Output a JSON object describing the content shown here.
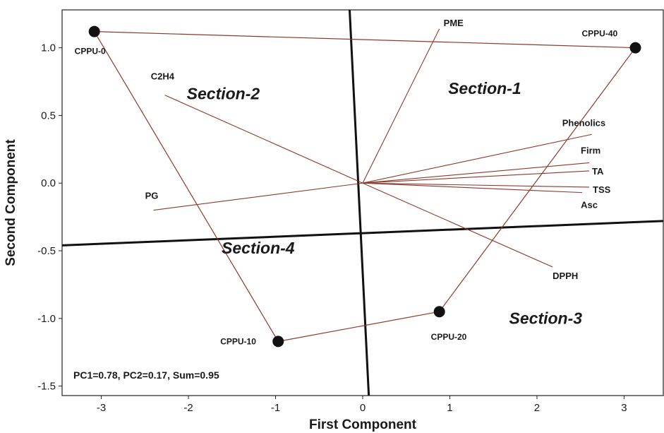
{
  "chart_data": {
    "type": "scatter",
    "subtype": "biplot",
    "xlabel": "First Component",
    "ylabel": "Second Component",
    "xlim": [
      -3.45,
      3.45
    ],
    "ylim": [
      -1.57,
      1.28
    ],
    "xticks": [
      -3,
      -2,
      -1,
      0,
      1,
      2,
      3
    ],
    "xtick_labels": [
      "-3",
      "-2",
      "-1",
      "0",
      "1",
      "2",
      "3"
    ],
    "yticks": [
      -1.5,
      -1.0,
      -0.5,
      0.0,
      0.5,
      1.0
    ],
    "ytick_labels": [
      "-1.5",
      "-1.0",
      "-0.5",
      "0.0",
      "0.5",
      "1.0"
    ],
    "grid": false,
    "observations": [
      {
        "label": "CPPU-0",
        "x": -3.08,
        "y": 1.12
      },
      {
        "label": "CPPU-40",
        "x": 3.13,
        "y": 1.0
      },
      {
        "label": "CPPU-20",
        "x": 0.88,
        "y": -0.95
      },
      {
        "label": "CPPU-10",
        "x": -0.97,
        "y": -1.17
      }
    ],
    "observation_links": [
      [
        "CPPU-0",
        "CPPU-40"
      ],
      [
        "CPPU-40",
        "CPPU-20"
      ],
      [
        "CPPU-20",
        "CPPU-10"
      ],
      [
        "CPPU-10",
        "CPPU-0"
      ]
    ],
    "loadings": [
      {
        "label": "PME",
        "x": 0.88,
        "y": 1.14
      },
      {
        "label": "C2H4",
        "x": -2.27,
        "y": 0.65
      },
      {
        "label": "Phenolics",
        "x": 2.63,
        "y": 0.36
      },
      {
        "label": "Firm",
        "x": 2.6,
        "y": 0.15
      },
      {
        "label": "TA",
        "x": 2.6,
        "y": 0.09
      },
      {
        "label": "TSS",
        "x": 2.6,
        "y": -0.03
      },
      {
        "label": "Asc",
        "x": 2.52,
        "y": -0.07
      },
      {
        "label": "PG",
        "x": -2.4,
        "y": -0.2
      },
      {
        "label": "DPPH",
        "x": 2.18,
        "y": -0.62
      }
    ],
    "section_dividers": [
      {
        "from": [
          -0.15,
          1.28
        ],
        "to": [
          0.07,
          -1.57
        ]
      },
      {
        "from": [
          -3.45,
          -0.46
        ],
        "to": [
          3.45,
          -0.28
        ]
      }
    ],
    "sections": [
      {
        "label": "Section-1",
        "x": 1.4,
        "y": 0.66
      },
      {
        "label": "Section-2",
        "x": -1.6,
        "y": 0.62
      },
      {
        "label": "Section-3",
        "x": 2.1,
        "y": -1.04
      },
      {
        "label": "Section-4",
        "x": -1.2,
        "y": -0.52
      }
    ],
    "annotation": "PC1=0.78, PC2=0.17, Sum=0.95"
  }
}
